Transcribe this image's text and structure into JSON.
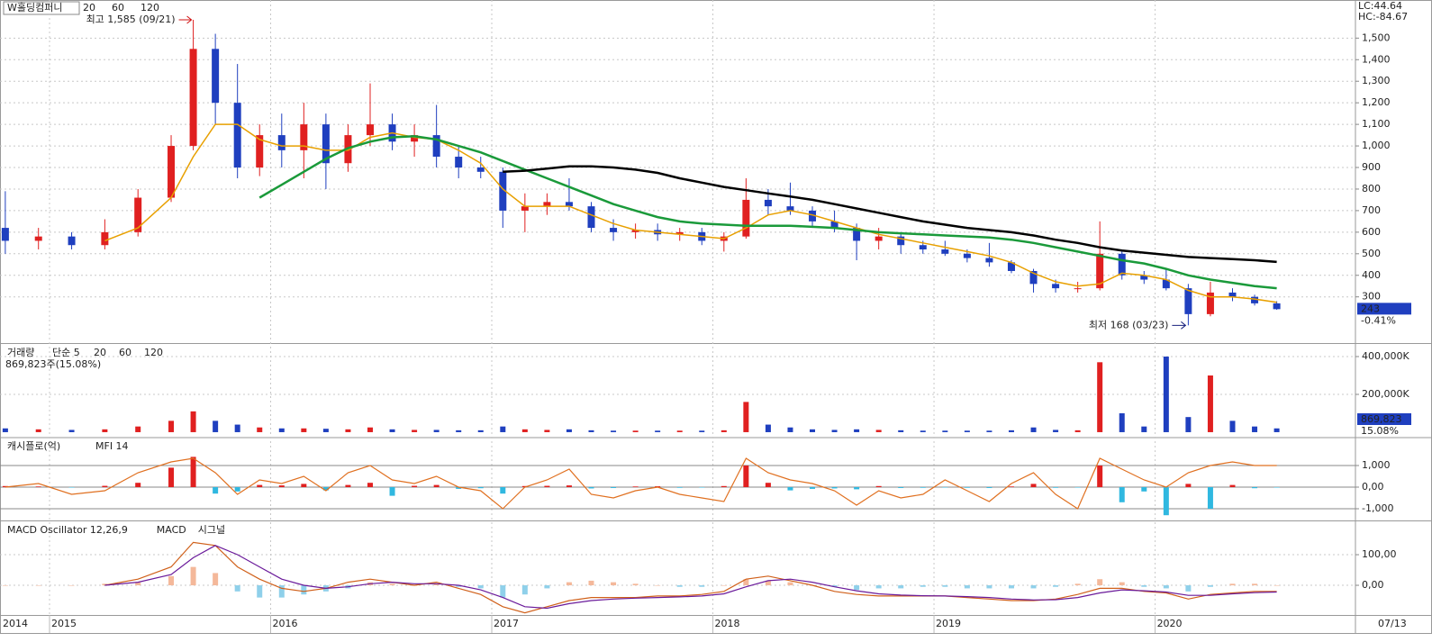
{
  "chart_data": [
    {
      "type": "candlestick",
      "title": "W홀딩컴퍼니",
      "x": [
        2014.8,
        2014.95,
        2015.1,
        2015.25,
        2015.4,
        2015.55,
        2015.65,
        2015.75,
        2015.85,
        2015.95,
        2016.05,
        2016.15,
        2016.25,
        2016.35,
        2016.45,
        2016.55,
        2016.65,
        2016.75,
        2016.85,
        2016.95,
        2017.05,
        2017.15,
        2017.25,
        2017.35,
        2017.45,
        2017.55,
        2017.65,
        2017.75,
        2017.85,
        2017.95,
        2018.05,
        2018.15,
        2018.25,
        2018.35,
        2018.45,
        2018.55,
        2018.65,
        2018.75,
        2018.85,
        2018.95,
        2019.05,
        2019.15,
        2019.25,
        2019.35,
        2019.45,
        2019.55,
        2019.65,
        2019.75,
        2019.85,
        2019.95,
        2020.05,
        2020.15,
        2020.25,
        2020.35,
        2020.45,
        2020.55
      ],
      "open": [
        620,
        560,
        580,
        540,
        600,
        760,
        1000,
        1450,
        1200,
        900,
        1050,
        980,
        1100,
        920,
        1050,
        1100,
        1020,
        1050,
        950,
        900,
        880,
        700,
        720,
        740,
        720,
        620,
        600,
        610,
        590,
        600,
        560,
        580,
        750,
        720,
        700,
        650,
        620,
        560,
        580,
        540,
        520,
        500,
        480,
        460,
        420,
        360,
        340,
        340,
        500,
        400,
        380,
        340,
        220,
        320,
        300,
        270
      ],
      "high": [
        790,
        620,
        600,
        660,
        800,
        1050,
        1585,
        1520,
        1380,
        1100,
        1150,
        1200,
        1150,
        1100,
        1290,
        1150,
        1100,
        1190,
        1000,
        950,
        900,
        780,
        780,
        850,
        740,
        660,
        640,
        640,
        620,
        620,
        600,
        850,
        800,
        830,
        720,
        700,
        640,
        620,
        600,
        560,
        560,
        520,
        550,
        470,
        430,
        380,
        370,
        650,
        520,
        420,
        430,
        360,
        370,
        340,
        310,
        280
      ],
      "low": [
        500,
        520,
        520,
        520,
        580,
        740,
        980,
        1100,
        850,
        860,
        900,
        850,
        800,
        880,
        1000,
        980,
        950,
        900,
        850,
        850,
        620,
        600,
        680,
        700,
        600,
        560,
        570,
        560,
        560,
        540,
        510,
        570,
        680,
        680,
        620,
        600,
        470,
        520,
        500,
        500,
        490,
        460,
        440,
        410,
        320,
        320,
        320,
        330,
        380,
        360,
        330,
        168,
        210,
        280,
        260,
        240
      ],
      "close": [
        560,
        580,
        540,
        600,
        760,
        1000,
        1450,
        1200,
        900,
        1050,
        980,
        1100,
        920,
        1050,
        1100,
        1020,
        1050,
        950,
        900,
        880,
        700,
        720,
        740,
        720,
        620,
        600,
        610,
        590,
        600,
        560,
        580,
        750,
        720,
        700,
        650,
        620,
        560,
        580,
        540,
        520,
        500,
        480,
        460,
        420,
        360,
        340,
        340,
        500,
        400,
        380,
        340,
        220,
        320,
        300,
        270,
        243
      ],
      "up_color": "#e02020",
      "down_color": "#1f3fbf",
      "series": [
        {
          "name": "20",
          "color": "#e8a000",
          "values": [
            null,
            null,
            null,
            560,
            620,
            760,
            950,
            1100,
            1100,
            1030,
            1000,
            1000,
            980,
            980,
            1040,
            1060,
            1040,
            1030,
            980,
            920,
            800,
            720,
            720,
            720,
            680,
            640,
            610,
            600,
            590,
            580,
            570,
            620,
            680,
            700,
            680,
            650,
            620,
            590,
            570,
            550,
            530,
            510,
            490,
            460,
            410,
            370,
            350,
            360,
            410,
            400,
            380,
            330,
            300,
            300,
            290,
            275
          ]
        },
        {
          "name": "60",
          "color": "#1a9a3a",
          "values": [
            null,
            null,
            null,
            null,
            null,
            null,
            null,
            null,
            null,
            760,
            820,
            880,
            940,
            990,
            1020,
            1040,
            1045,
            1030,
            1000,
            970,
            930,
            890,
            850,
            810,
            770,
            730,
            700,
            670,
            650,
            640,
            635,
            630,
            630,
            630,
            625,
            620,
            610,
            600,
            595,
            590,
            585,
            580,
            575,
            565,
            550,
            530,
            510,
            490,
            470,
            455,
            430,
            400,
            380,
            365,
            350,
            340
          ]
        },
        {
          "name": "120",
          "color": "#000000",
          "values": [
            null,
            null,
            null,
            null,
            null,
            null,
            null,
            null,
            null,
            null,
            null,
            null,
            null,
            null,
            null,
            null,
            null,
            null,
            null,
            null,
            880,
            885,
            895,
            905,
            905,
            900,
            890,
            875,
            850,
            830,
            810,
            795,
            780,
            765,
            750,
            730,
            710,
            690,
            670,
            650,
            635,
            620,
            610,
            600,
            585,
            565,
            550,
            530,
            515,
            505,
            495,
            485,
            480,
            475,
            470,
            462
          ]
        }
      ],
      "ylim": [
        90,
        1660
      ],
      "yticks": [
        {
          "value": 1500,
          "label": "1,500"
        },
        {
          "value": 1400,
          "label": "1,400"
        },
        {
          "value": 1300,
          "label": "1,300"
        },
        {
          "value": 1200,
          "label": "1,200"
        },
        {
          "value": 1100,
          "label": "1,100"
        },
        {
          "value": 1000,
          "label": "1,000"
        },
        900,
        800,
        700,
        600,
        500,
        400,
        300
      ],
      "xlim": [
        2014.776,
        2020.906
      ],
      "xticks": [
        2015,
        2016,
        2017,
        2018,
        2019,
        2020
      ],
      "x_left_label": "2014",
      "x_right_label": "07/13",
      "annotations": [
        {
          "text": "최고 1,585 (09/21)",
          "color": "#d01010"
        },
        {
          "text": "최저 168 (03/23)",
          "color": "#1a237e"
        }
      ],
      "lc": "LC:44.64",
      "hc": "HC:-84.67",
      "last_label": "243",
      "change": "-0.41%"
    },
    {
      "type": "bar",
      "title": "거래량",
      "legend": [
        {
          "name": "단순 5",
          "color": "#a020a0"
        },
        {
          "name": "20",
          "color": "#e8a000"
        },
        {
          "name": "60",
          "color": "#1a9a3a"
        },
        {
          "name": "120",
          "color": "#555555"
        }
      ],
      "info": "869,823주(15.08%)",
      "box_value": "869,823",
      "box_pct": "15.08%",
      "x": [
        2014.8,
        2014.95,
        2015.1,
        2015.25,
        2015.4,
        2015.55,
        2015.65,
        2015.75,
        2015.85,
        2015.95,
        2016.05,
        2016.15,
        2016.25,
        2016.35,
        2016.45,
        2016.55,
        2016.65,
        2016.75,
        2016.85,
        2016.95,
        2017.05,
        2017.15,
        2017.25,
        2017.35,
        2017.45,
        2017.55,
        2017.65,
        2017.75,
        2017.85,
        2017.95,
        2018.05,
        2018.15,
        2018.25,
        2018.35,
        2018.45,
        2018.55,
        2018.65,
        2018.75,
        2018.85,
        2018.95,
        2019.05,
        2019.15,
        2019.25,
        2019.35,
        2019.45,
        2019.55,
        2019.65,
        2019.75,
        2019.85,
        2019.95,
        2020.05,
        2020.15,
        2020.25,
        2020.35,
        2020.45,
        2020.55
      ],
      "values": [
        20000,
        15000,
        12000,
        15000,
        30000,
        60000,
        110000,
        60000,
        40000,
        25000,
        20000,
        20000,
        18000,
        15000,
        25000,
        15000,
        12000,
        12000,
        10000,
        10000,
        30000,
        15000,
        12000,
        15000,
        10000,
        8000,
        8000,
        8000,
        8000,
        8000,
        10000,
        160000,
        40000,
        25000,
        15000,
        12000,
        15000,
        12000,
        10000,
        8000,
        8000,
        8000,
        8000,
        10000,
        25000,
        12000,
        10000,
        370000,
        100000,
        30000,
        400000,
        80000,
        300000,
        60000,
        30000,
        20000
      ],
      "ylim": [
        -24000,
        462000
      ],
      "yticks": [
        {
          "value": 400000,
          "label": "400,000K"
        },
        {
          "value": 200000,
          "label": "200,000K"
        }
      ]
    },
    {
      "type": "bar",
      "title": "캐시플로(억)",
      "pos_color": "#e02020",
      "neg_color": "#30b8e0",
      "x": [
        2014.8,
        2014.95,
        2015.1,
        2015.25,
        2015.4,
        2015.55,
        2015.65,
        2015.75,
        2015.85,
        2015.95,
        2016.05,
        2016.15,
        2016.25,
        2016.35,
        2016.45,
        2016.55,
        2016.65,
        2016.75,
        2016.85,
        2016.95,
        2017.05,
        2017.15,
        2017.25,
        2017.35,
        2017.45,
        2017.55,
        2017.65,
        2017.75,
        2017.85,
        2017.95,
        2018.05,
        2018.15,
        2018.25,
        2018.35,
        2018.45,
        2018.55,
        2018.65,
        2018.75,
        2018.85,
        2018.95,
        2019.05,
        2019.15,
        2019.25,
        2019.35,
        2019.45,
        2019.55,
        2019.65,
        2019.75,
        2019.85,
        2019.95,
        2020.05,
        2020.15,
        2020.25,
        2020.35,
        2020.45,
        2020.55
      ],
      "values": [
        50,
        30,
        -20,
        60,
        200,
        900,
        1400,
        -300,
        -200,
        100,
        80,
        150,
        -150,
        100,
        200,
        -400,
        60,
        100,
        -80,
        -50,
        -300,
        50,
        60,
        80,
        -60,
        -40,
        30,
        40,
        -30,
        -20,
        50,
        1000,
        200,
        -150,
        -80,
        -60,
        -100,
        50,
        -40,
        -30,
        -20,
        -30,
        -40,
        30,
        150,
        -30,
        -20,
        1000,
        -700,
        -200,
        -1300,
        150,
        -1000,
        100,
        -50,
        -20
      ],
      "series": [
        {
          "name": "MFI 14",
          "color": "#e07020",
          "axis": "y2",
          "values": [
            50,
            55,
            40,
            45,
            70,
            85,
            90,
            70,
            40,
            60,
            55,
            65,
            45,
            70,
            80,
            60,
            55,
            65,
            50,
            45,
            20,
            50,
            60,
            75,
            40,
            35,
            45,
            50,
            40,
            35,
            30,
            90,
            70,
            60,
            55,
            45,
            25,
            45,
            35,
            40,
            60,
            45,
            30,
            55,
            70,
            40,
            20,
            90,
            75,
            60,
            50,
            70,
            80,
            85,
            80,
            80
          ]
        }
      ],
      "ylim": [
        -1500,
        2250
      ],
      "yticks": [
        {
          "value": 1000,
          "label": "1,000"
        },
        {
          "value": 0,
          "label": "0,00"
        },
        {
          "value": -1000,
          "label": "-1,000"
        }
      ],
      "y2lim": [
        5,
        117.5
      ]
    },
    {
      "type": "bar",
      "title": "MACD Oscillator 12,26,9",
      "title_color": "#a020a0",
      "pos_color": "#f4b89a",
      "neg_color": "#8fd0ea",
      "x": [
        2014.8,
        2014.95,
        2015.1,
        2015.25,
        2015.4,
        2015.55,
        2015.65,
        2015.75,
        2015.85,
        2015.95,
        2016.05,
        2016.15,
        2016.25,
        2016.35,
        2016.45,
        2016.55,
        2016.65,
        2016.75,
        2016.85,
        2016.95,
        2017.05,
        2017.15,
        2017.25,
        2017.35,
        2017.45,
        2017.55,
        2017.65,
        2017.75,
        2017.85,
        2017.95,
        2018.05,
        2018.15,
        2018.25,
        2018.35,
        2018.45,
        2018.55,
        2018.65,
        2018.75,
        2018.85,
        2018.95,
        2019.05,
        2019.15,
        2019.25,
        2019.35,
        2019.45,
        2019.55,
        2019.65,
        2019.75,
        2019.85,
        2019.95,
        2020.05,
        2020.15,
        2020.25,
        2020.35,
        2020.45,
        2020.55
      ],
      "values": [
        0,
        0,
        0,
        5,
        10,
        30,
        60,
        40,
        -20,
        -40,
        -40,
        -30,
        -20,
        -10,
        10,
        5,
        0,
        5,
        -5,
        -10,
        -40,
        -30,
        -10,
        10,
        15,
        10,
        5,
        0,
        -5,
        -5,
        0,
        20,
        15,
        10,
        0,
        -5,
        -15,
        -10,
        -10,
        -5,
        -5,
        -10,
        -10,
        -10,
        -10,
        -5,
        5,
        20,
        10,
        -5,
        -10,
        -20,
        -5,
        5,
        5,
        0
      ],
      "series": [
        {
          "name": "MACD",
          "color": "#d0601a",
          "values": [
            null,
            null,
            null,
            0,
            20,
            60,
            140,
            130,
            60,
            20,
            -10,
            -20,
            -10,
            10,
            20,
            10,
            0,
            10,
            -10,
            -30,
            -70,
            -90,
            -70,
            -50,
            -40,
            -40,
            -40,
            -35,
            -35,
            -30,
            -20,
            20,
            30,
            15,
            0,
            -20,
            -30,
            -35,
            -35,
            -35,
            -35,
            -40,
            -45,
            -50,
            -50,
            -45,
            -30,
            -10,
            -10,
            -20,
            -25,
            -45,
            -30,
            -25,
            -20,
            -20
          ]
        },
        {
          "name": "시그널",
          "color": "#6a1a9a",
          "values": [
            null,
            null,
            null,
            0,
            10,
            35,
            90,
            130,
            100,
            60,
            20,
            0,
            -10,
            -5,
            5,
            10,
            5,
            5,
            0,
            -15,
            -40,
            -70,
            -75,
            -60,
            -50,
            -45,
            -42,
            -40,
            -38,
            -35,
            -28,
            -5,
            15,
            20,
            10,
            -5,
            -18,
            -28,
            -32,
            -34,
            -35,
            -37,
            -40,
            -45,
            -48,
            -47,
            -40,
            -25,
            -15,
            -18,
            -22,
            -33,
            -33,
            -28,
            -24,
            -22
          ]
        }
      ],
      "ylim": [
        -97,
        206
      ],
      "yticks": [
        {
          "value": 100,
          "label": "100,00"
        },
        {
          "value": 0,
          "label": "0,00"
        }
      ]
    }
  ]
}
